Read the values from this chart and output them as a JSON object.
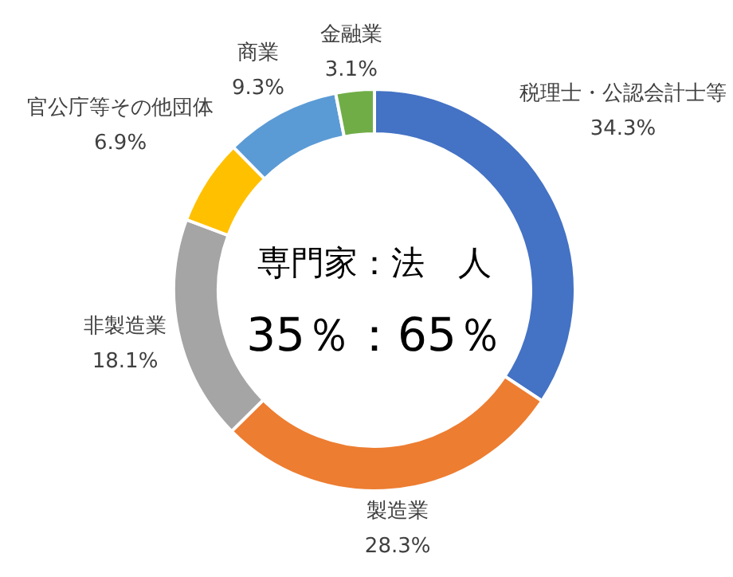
{
  "chart_data": {
    "type": "donut",
    "categories": [
      "税理士・公認会計士等",
      "製造業",
      "非製造業",
      "官公庁等その他団体",
      "商業",
      "金融業"
    ],
    "values": [
      34.3,
      28.3,
      18.1,
      6.9,
      9.3,
      3.1
    ],
    "colors": [
      "#4472c4",
      "#ed7d31",
      "#a5a5a5",
      "#ffc000",
      "#5b9bd5",
      "#70ad47"
    ],
    "value_labels": [
      "34.3%",
      "28.3%",
      "18.1%",
      "6.9%",
      "9.3%",
      "3.1%"
    ],
    "annotations": [
      "専門家：法　人",
      "35％：65％"
    ],
    "legend": false
  }
}
